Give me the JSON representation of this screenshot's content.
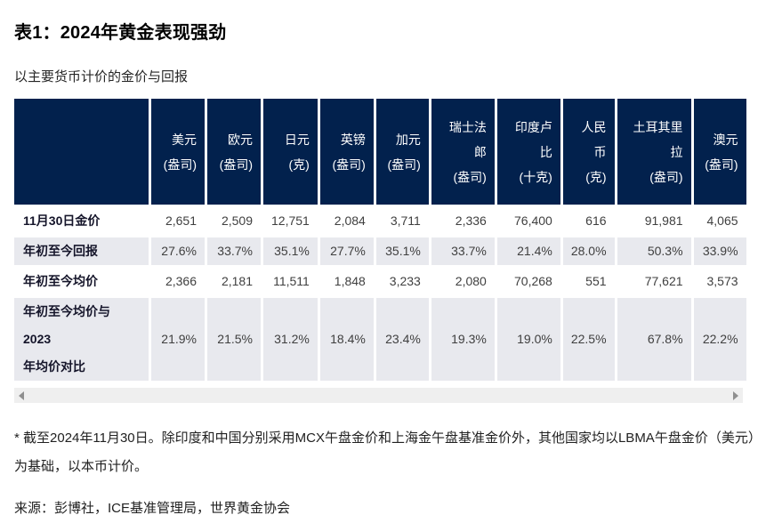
{
  "title": "表1：2024年黄金表现强劲",
  "subtitle": "以主要货币计价的金价与回报",
  "chart_data": {
    "type": "table",
    "columns": [
      "美元\n(盎司)",
      "欧元\n(盎司)",
      "日元\n(克)",
      "英镑\n(盎司)",
      "加元\n(盎司)",
      "瑞士法郎\n(盎司)",
      "印度卢比\n(十克)",
      "人民币\n(克)",
      "土耳其里拉\n(盎司)",
      "澳元\n(盎司)"
    ],
    "rows": [
      {
        "label": "11月30日金价",
        "values": [
          "2,651",
          "2,509",
          "12,751",
          "2,084",
          "3,711",
          "2,336",
          "76,400",
          "616",
          "91,981",
          "4,065"
        ]
      },
      {
        "label": "年初至今回报",
        "values": [
          "27.6%",
          "33.7%",
          "35.1%",
          "27.7%",
          "35.1%",
          "33.7%",
          "21.4%",
          "28.0%",
          "50.3%",
          "33.9%"
        ]
      },
      {
        "label": "年初至今均价",
        "values": [
          "2,366",
          "2,181",
          "11,511",
          "1,848",
          "3,233",
          "2,080",
          "70,268",
          "551",
          "77,621",
          "3,573"
        ]
      },
      {
        "label": "年初至今均价与\n2023\n年均价对比",
        "values": [
          "21.9%",
          "21.5%",
          "31.2%",
          "18.4%",
          "23.4%",
          "19.3%",
          "19.0%",
          "22.5%",
          "67.8%",
          "22.2%"
        ]
      }
    ],
    "title": "表1：2024年黄金表现强劲",
    "subtitle": "以主要货币计价的金价与回报"
  },
  "footnote": "* 截至2024年11月30日。除印度和中国分别采用MCX午盘金价和上海金午盘基准金价外，其他国家均以LBMA午盘金价（美元）为基础，以本币计价。",
  "source": "来源：彭博社，ICE基准管理局，世界黄金协会",
  "colors": {
    "header_bg": "#02214d",
    "stripe_bg": "#e8e9ee"
  }
}
